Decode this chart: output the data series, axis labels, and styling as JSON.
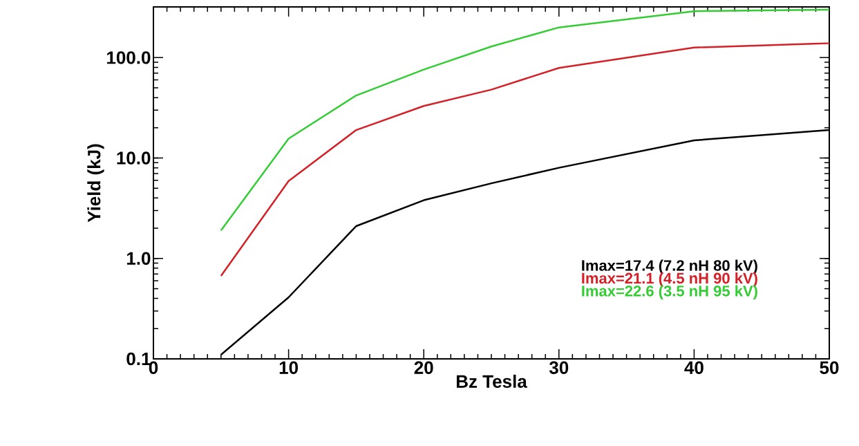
{
  "chart_data": {
    "type": "line",
    "xlabel": "Bz Tesla",
    "ylabel": "Yield (kJ)",
    "x": [
      5,
      10,
      15,
      20,
      25,
      30,
      40,
      50
    ],
    "series": [
      {
        "name": "Imax=17.4 (7.2 nH 80 kV)",
        "color": "#000000",
        "values": [
          0.11,
          0.41,
          2.1,
          3.8,
          5.6,
          8.0,
          15,
          19
        ]
      },
      {
        "name": "Imax=21.1 (4.5 nH 90 kV)",
        "color": "#d42027",
        "values": [
          0.67,
          5.9,
          19,
          33,
          48,
          79,
          126,
          139
        ]
      },
      {
        "name": "Imax=22.6 (3.5 nH 95 kV)",
        "color": "#33cc33",
        "values": [
          1.9,
          15.6,
          42,
          76,
          129,
          200,
          290,
          300
        ]
      }
    ],
    "xlim": [
      0,
      50
    ],
    "ylim": [
      0.1,
      320
    ],
    "log": "y",
    "xticks": [
      0,
      10,
      20,
      30,
      40,
      50
    ],
    "yticks": [
      {
        "value": 0.1,
        "label": "0.1"
      },
      {
        "value": 1,
        "label": "1.0"
      },
      {
        "value": 10,
        "label": "10.0"
      },
      {
        "value": 100,
        "label": "100.0"
      }
    ],
    "grid": false,
    "legend": "bottom right",
    "marker": "none",
    "line_style": "solid"
  }
}
